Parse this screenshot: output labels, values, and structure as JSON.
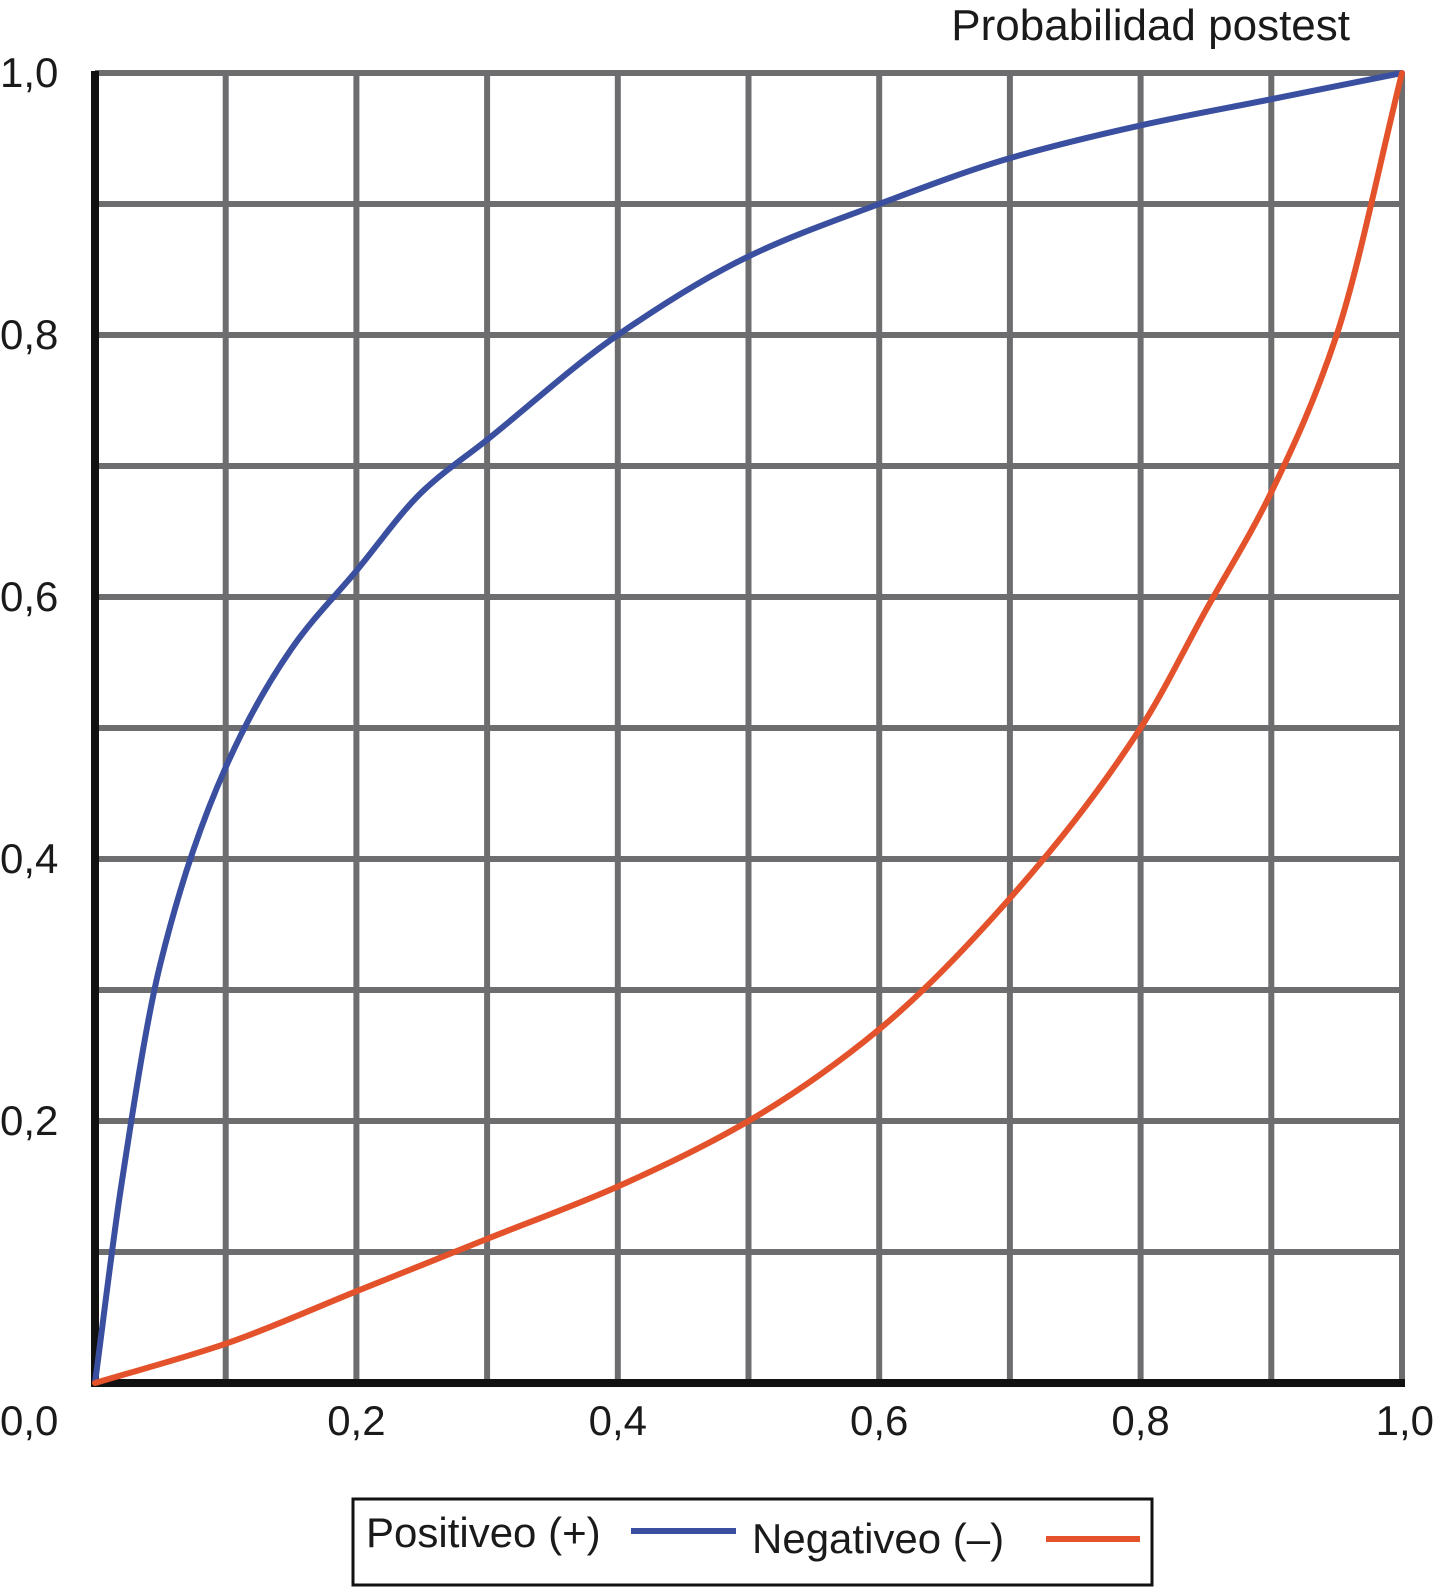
{
  "chart_data": {
    "type": "line",
    "title": "Probabilidad postest",
    "xlabel": "",
    "ylabel": "",
    "xlim": [
      0,
      1
    ],
    "ylim": [
      0,
      1
    ],
    "grid": true,
    "grid_step": 0.1,
    "x_ticks": [
      0,
      0.2,
      0.4,
      0.6,
      0.8,
      1.0
    ],
    "x_tick_labels": [
      "0,0",
      "0,2",
      "0,4",
      "0,6",
      "0,8",
      "1,0"
    ],
    "y_ticks": [
      0.2,
      0.4,
      0.6,
      0.8,
      1.0
    ],
    "y_tick_labels": [
      "0,2",
      "0,4",
      "0,6",
      "0,8",
      "1,0"
    ],
    "legend_position": "bottom",
    "series": [
      {
        "name": "Positiveo (+)",
        "color": "#3a4f9f",
        "x": [
          0,
          0.02,
          0.05,
          0.1,
          0.15,
          0.2,
          0.25,
          0.3,
          0.4,
          0.5,
          0.6,
          0.7,
          0.8,
          0.9,
          1.0
        ],
        "y": [
          0,
          0.15,
          0.32,
          0.47,
          0.56,
          0.62,
          0.68,
          0.72,
          0.8,
          0.86,
          0.9,
          0.935,
          0.96,
          0.98,
          1.0
        ]
      },
      {
        "name": "Negativeo (–)",
        "color": "#e4522b",
        "x": [
          0,
          0.1,
          0.2,
          0.3,
          0.4,
          0.5,
          0.6,
          0.7,
          0.8,
          0.85,
          0.9,
          0.95,
          1.0
        ],
        "y": [
          0,
          0.03,
          0.07,
          0.11,
          0.15,
          0.2,
          0.27,
          0.37,
          0.5,
          0.59,
          0.68,
          0.8,
          1.0
        ]
      }
    ]
  }
}
